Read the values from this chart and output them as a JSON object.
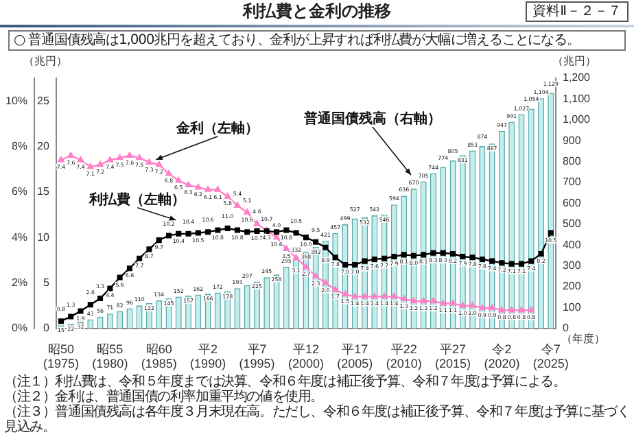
{
  "chart_data": {
    "type": "bar",
    "title": "利払費と金利の推移",
    "subtitle": "○ 普通国債残高は1,000兆円を超えており、金利が上昇すれば利払費が大幅に増えることになる。",
    "annotations": [
      "資料Ⅱ－２－７",
      "（注１）利払費は、令和５年度までは決算、令和６年度は補正後予算、令和７年度は予算による。",
      "（注２）金利は、普通国債の利率加重平均の値を使用。",
      "（注３）普通国債残高は各年度３月末現在高。ただし、令和６年度は補正後予算、令和７年度は予算に基づく見込み。"
    ],
    "xlabel": "（年度）",
    "ylabel": "（兆円）",
    "y2label": "（兆円）",
    "categories": [
      "昭50\n(1975)",
      null,
      null,
      null,
      null,
      "昭55\n(1980)",
      null,
      null,
      null,
      null,
      "昭60\n(1985)",
      null,
      null,
      null,
      null,
      "平2\n(1990)",
      null,
      null,
      null,
      null,
      "平7\n(1995)",
      null,
      null,
      null,
      null,
      "平12\n(2000)",
      null,
      null,
      null,
      null,
      "平17\n(2005)",
      null,
      null,
      null,
      null,
      "平22\n(2010)",
      null,
      null,
      null,
      null,
      "平27\n(2015)",
      null,
      null,
      null,
      null,
      "令2\n(2020)",
      null,
      null,
      null,
      null,
      "令7\n(2025)"
    ],
    "series": [
      {
        "name": "普通国債残高（右軸）",
        "type": "bar",
        "axis": "y2",
        "color": "#c4eeee",
        "values": [
          15,
          22,
          32,
          43,
          56,
          71,
          82,
          96,
          110,
          122,
          134,
          145,
          152,
          157,
          162,
          166,
          172,
          178,
          193,
          207,
          225,
          245,
          258,
          295,
          332,
          368,
          392,
          421,
          457,
          499,
          527,
          532,
          542,
          546,
          594,
          636,
          670,
          705,
          744,
          774,
          805,
          831,
          853,
          874,
          887,
          947,
          991,
          1027,
          1054,
          1104,
          1129
        ],
        "value_labels": [
          "15",
          "22",
          "32",
          "43",
          "56",
          "71",
          "82",
          "96",
          "110",
          "122",
          "134",
          "145",
          "152",
          "157",
          "162",
          "166",
          "172",
          "178",
          "193",
          "207",
          "225",
          "245",
          "258",
          "295",
          "332",
          "368",
          "392",
          "421",
          "457",
          "499",
          "527",
          "532",
          "542",
          "546",
          "594",
          "636",
          "670",
          "705",
          "744",
          "774",
          "805",
          "831",
          "853",
          "874",
          "887",
          "947",
          "991",
          "1,027",
          "1,054",
          "1,104",
          "1,129"
        ]
      },
      {
        "name": "利払費（左軸）",
        "type": "line",
        "color": "#000000",
        "marker": "square",
        "values": [
          0.8,
          1.3,
          1.9,
          2.6,
          3.3,
          4.4,
          5.6,
          6.6,
          7.7,
          8.7,
          9.7,
          10.2,
          10.4,
          10.4,
          10.5,
          10.6,
          10.8,
          11.0,
          10.8,
          10.6,
          10.7,
          10.7,
          10.6,
          10.8,
          10.5,
          10.0,
          9.5,
          8.9,
          7.8,
          7.0,
          7.0,
          7.4,
          7.6,
          7.7,
          7.9,
          8.1,
          8.0,
          8.1,
          8.3,
          8.3,
          8.2,
          7.9,
          7.8,
          7.6,
          7.4,
          7.2,
          7.1,
          7.1,
          7.4,
          8.2,
          10.5
        ],
        "value_labels": [
          "0.8",
          "1.3",
          "1.9",
          "2.6",
          "3.3",
          "4.4",
          "5.6",
          "6.6",
          "7.7",
          "8.7",
          "9.7",
          "10.2",
          "10.4",
          "10.4",
          "10.5",
          "10.6",
          "10.8",
          "11.0",
          "10.8",
          "10.6",
          "10.7",
          "10.7",
          "10.6",
          "10.8",
          "10.5",
          "10.0",
          "9.5",
          "8.9",
          "7.8",
          "7.0",
          "7.0",
          "7.4",
          "7.6",
          "7.7",
          "7.9",
          "8.1",
          "8.0",
          "8.1",
          "8.3",
          "8.3",
          "8.2",
          "7.9",
          "7.8",
          "7.6",
          "7.4",
          "7.2",
          "7.1",
          "7.1",
          "7.4",
          "8.2",
          "10.5"
        ]
      },
      {
        "name": "金利（左軸）",
        "type": "line",
        "axis": "y3",
        "color": "#ff80c8",
        "marker": "triangle",
        "values": [
          7.4,
          7.6,
          7.4,
          7.1,
          7.2,
          7.4,
          7.5,
          7.6,
          7.5,
          7.3,
          7.2,
          6.8,
          6.5,
          6.3,
          6.2,
          6.1,
          6.1,
          5.8,
          5.4,
          5.1,
          4.6,
          4.3,
          4.0,
          3.5,
          3.1,
          2.7,
          2.3,
          2.0,
          1.7,
          1.5,
          1.4,
          1.4,
          1.4,
          1.4,
          1.4,
          1.3,
          1.2,
          1.2,
          1.2,
          1.1,
          1.1,
          1.0,
          1.0,
          0.9,
          0.9,
          0.8,
          0.8,
          0.8,
          0.8,
          null,
          null
        ],
        "value_labels": [
          "7.4",
          "7.6",
          "7.4",
          "7.1",
          "7.2",
          "7.4",
          "7.5",
          "7.6",
          "7.5",
          "7.3",
          "7.2",
          "6.8",
          "6.5",
          "6.3",
          "6.2",
          "6.1",
          "6.1",
          "5.8",
          "5.4",
          "5.1",
          "4.6",
          "4.3",
          "4.0",
          "3.5",
          "3.1",
          "2.7",
          "2.3",
          "2.0",
          "1.7",
          "1.5",
          "1.4",
          "1.4",
          "1.4",
          "1.4",
          "1.4",
          "1.3",
          "1.2",
          "1.2",
          "1.2",
          "1.1",
          "1.1",
          "1.0",
          "1.0",
          "0.9",
          "0.9",
          "0.8",
          "0.8",
          "0.8",
          "0.8",
          null,
          null
        ]
      }
    ],
    "ylim": [
      0,
      27.5
    ],
    "yticks": [
      0,
      5,
      10,
      15,
      20,
      25
    ],
    "y2lim": [
      0,
      1200
    ],
    "y2ticks": [
      0,
      100,
      200,
      300,
      400,
      500,
      600,
      700,
      800,
      900,
      {
        "value": 1000,
        "label": "1,000"
      },
      {
        "value": 1100,
        "label": "1,100"
      },
      {
        "value": 1200,
        "label": "1,200"
      }
    ],
    "y3lim": [
      0,
      11
    ],
    "y3ticks": [
      {
        "value": 0,
        "label": "0%"
      },
      {
        "value": 2,
        "label": "2%"
      },
      {
        "value": 4,
        "label": "4%"
      },
      {
        "value": 6,
        "label": "6%"
      },
      {
        "value": 8,
        "label": "8%"
      },
      {
        "value": 10,
        "label": "10%"
      }
    ],
    "legend": false
  }
}
